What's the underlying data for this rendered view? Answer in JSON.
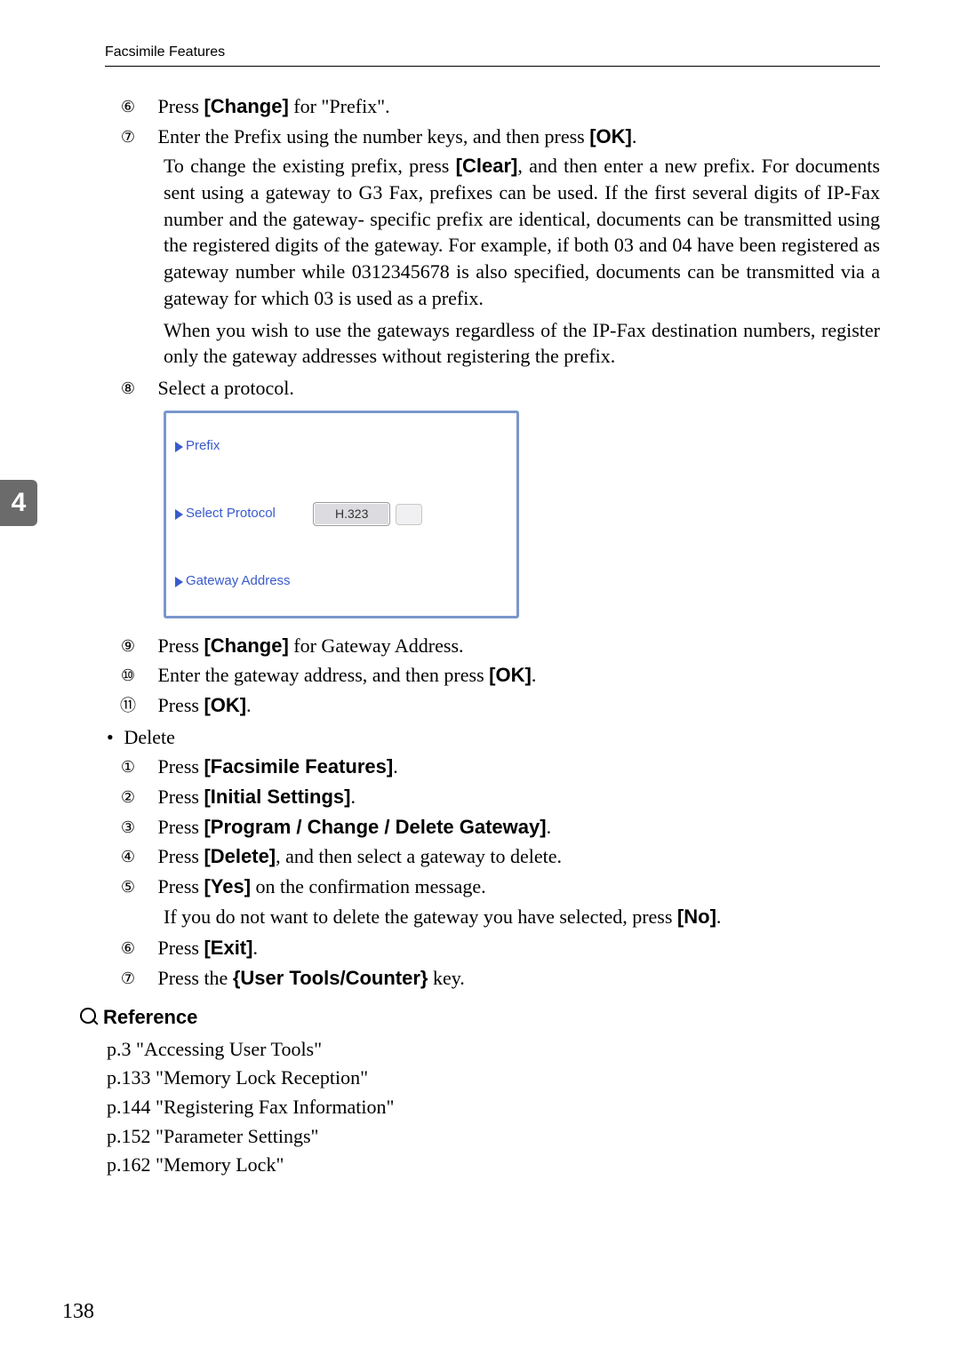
{
  "header": {
    "text": "Facsimile Features"
  },
  "sideTab": {
    "label": "4"
  },
  "steps_top": [
    {
      "num": "⑥",
      "pre": "Press ",
      "bold": "[Change]",
      "post": " for \"Prefix\"."
    },
    {
      "num": "⑦",
      "pre": "Enter the Prefix using the number keys, and then press ",
      "bold": "[OK]",
      "post": "."
    }
  ],
  "para7": {
    "l1a": "To change the existing prefix, press ",
    "l1b": "[Clear]",
    "l1c": ", and then enter a new prefix.",
    "l2": "For documents sent using a gateway to G3 Fax, prefixes can be used. If the first several digits of IP-Fax number and the gateway- specific prefix are identical, documents can be transmitted using the registered digits of the gateway. For example, if both 03 and 04 have been registered as gateway number while 0312345678 is also specified, documents can be transmitted via a gateway for which 03 is used as a prefix.",
    "l3": "When you wish to use the gateways regardless of the IP-Fax destination numbers, register only the gateway addresses without registering the prefix."
  },
  "step8": {
    "num": "⑧",
    "text": "Select a protocol."
  },
  "screenshot": {
    "row1": "Prefix",
    "row2": "Select Protocol",
    "row2_btn": "H.323",
    "row3": "Gateway Address"
  },
  "steps_mid": [
    {
      "num": "⑨",
      "pre": "Press ",
      "bold": "[Change]",
      "post": " for Gateway Address."
    },
    {
      "num": "⑩",
      "pre": "Enter the gateway address, and then press ",
      "bold": "[OK]",
      "post": "."
    },
    {
      "num": "⑪",
      "pre": "Press ",
      "bold": "[OK]",
      "post": "."
    }
  ],
  "delete": {
    "label": "Delete",
    "s1": {
      "num": "①",
      "pre": "Press ",
      "bold": "[Facsimile Features]",
      "post": "."
    },
    "s2": {
      "num": "②",
      "pre": "Press ",
      "bold": "[Initial Settings]",
      "post": "."
    },
    "s3": {
      "num": "③",
      "pre": "Press ",
      "bold": "[Program / Change / Delete Gateway]",
      "post": "."
    },
    "s4": {
      "num": "④",
      "pre": "Press ",
      "bold": "[Delete]",
      "post": ", and then select a gateway to delete."
    },
    "s5": {
      "num": "⑤",
      "pre": "Press ",
      "bold": "[Yes]",
      "post": " on the confirmation message."
    },
    "s5b_a": "If you do not want to delete the gateway you have selected, press ",
    "s5b_b": "[No]",
    "s5b_c": ".",
    "s6": {
      "num": "⑥",
      "pre": "Press ",
      "bold": "[Exit]",
      "post": "."
    },
    "s7": {
      "num": "⑦",
      "pre": "Press the ",
      "lb": "{",
      "key": "User Tools/Counter",
      "rb": "}",
      "post": " key."
    }
  },
  "reference": {
    "title": "Reference",
    "lines": [
      "p.3 \"Accessing User Tools\"",
      "p.133 \"Memory Lock Reception\"",
      "p.144 \"Registering Fax Information\"",
      "p.152 \"Parameter Settings\"",
      "p.162 \"Memory Lock\""
    ]
  },
  "pageNumber": "138"
}
